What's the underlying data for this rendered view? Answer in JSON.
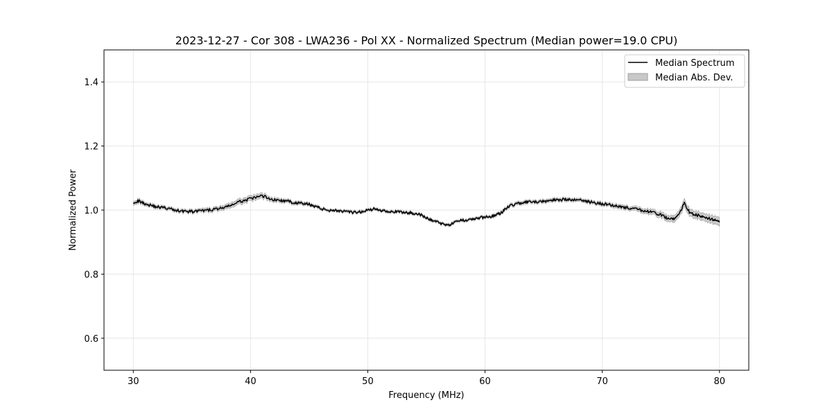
{
  "chart_data": {
    "type": "line",
    "title": "2023-12-27 - Cor 308 - LWA236 - Pol XX - Normalized Spectrum (Median power=19.0 CPU)",
    "xlabel": "Frequency (MHz)",
    "ylabel": "Normalized Power",
    "xlim": [
      27.5,
      82.5
    ],
    "ylim": [
      0.5,
      1.5
    ],
    "xticks": [
      30,
      40,
      50,
      60,
      70,
      80
    ],
    "yticks": [
      0.6,
      0.8,
      1.0,
      1.2,
      1.4
    ],
    "xtick_labels": [
      "30",
      "40",
      "50",
      "60",
      "70",
      "80"
    ],
    "ytick_labels": [
      "0.6",
      "0.8",
      "1.0",
      "1.2",
      "1.4"
    ],
    "grid": true,
    "legend_position": "top-right",
    "legend": [
      "Median Spectrum",
      "Median Abs. Dev."
    ],
    "colors": {
      "line": "#000000",
      "band": "#c8c8c8",
      "band_edge": "#a0a0a0",
      "grid": "#e6e6e6"
    },
    "series": [
      {
        "name": "Median Spectrum",
        "x": [
          30,
          30.5,
          31,
          31.5,
          32,
          32.5,
          33,
          33.5,
          34,
          34.5,
          35,
          35.5,
          36,
          36.5,
          37,
          37.5,
          38,
          38.5,
          39,
          39.5,
          40,
          40.5,
          41,
          41.5,
          42,
          42.5,
          43,
          43.5,
          44,
          44.5,
          45,
          45.5,
          46,
          46.5,
          47,
          47.5,
          48,
          48.5,
          49,
          49.5,
          50,
          50.5,
          51,
          51.5,
          52,
          52.5,
          53,
          53.5,
          54,
          54.5,
          55,
          55.5,
          56,
          56.5,
          57,
          57.5,
          58,
          58.5,
          59,
          59.5,
          60,
          60.5,
          61,
          61.5,
          62,
          62.5,
          63,
          63.5,
          64,
          64.5,
          65,
          65.5,
          66,
          66.5,
          67,
          67.5,
          68,
          68.5,
          69,
          69.5,
          70,
          70.5,
          71,
          71.5,
          72,
          72.5,
          73,
          73.5,
          74,
          74.5,
          75,
          75.5,
          76,
          76.5,
          77,
          77.5,
          78,
          78.5,
          79,
          79.5,
          80
        ],
        "values": [
          1.025,
          1.028,
          1.02,
          1.015,
          1.01,
          1.008,
          1.005,
          1.0,
          0.998,
          0.996,
          0.995,
          0.997,
          0.998,
          1.0,
          1.003,
          1.006,
          1.01,
          1.018,
          1.025,
          1.03,
          1.035,
          1.04,
          1.045,
          1.038,
          1.032,
          1.03,
          1.028,
          1.025,
          1.022,
          1.02,
          1.018,
          1.012,
          1.005,
          1.0,
          1.0,
          0.998,
          0.995,
          0.993,
          0.992,
          0.995,
          1.0,
          1.003,
          1.0,
          0.998,
          0.996,
          0.994,
          0.993,
          0.992,
          0.99,
          0.985,
          0.975,
          0.968,
          0.962,
          0.955,
          0.955,
          0.962,
          0.968,
          0.97,
          0.972,
          0.975,
          0.978,
          0.98,
          0.985,
          0.995,
          1.012,
          1.018,
          1.022,
          1.024,
          1.025,
          1.025,
          1.027,
          1.03,
          1.032,
          1.033,
          1.033,
          1.03,
          1.035,
          1.028,
          1.025,
          1.022,
          1.02,
          1.018,
          1.015,
          1.012,
          1.008,
          1.005,
          1.002,
          0.998,
          0.995,
          0.99,
          0.985,
          0.975,
          0.97,
          0.983,
          1.022,
          0.99,
          0.985,
          0.98,
          0.975,
          0.97,
          0.962
        ],
        "mad": [
          0.006,
          0.006,
          0.005,
          0.005,
          0.005,
          0.005,
          0.005,
          0.005,
          0.005,
          0.005,
          0.005,
          0.005,
          0.006,
          0.006,
          0.006,
          0.007,
          0.007,
          0.008,
          0.008,
          0.008,
          0.008,
          0.008,
          0.008,
          0.007,
          0.006,
          0.006,
          0.005,
          0.005,
          0.005,
          0.005,
          0.004,
          0.004,
          0.004,
          0.004,
          0.004,
          0.004,
          0.004,
          0.004,
          0.004,
          0.004,
          0.004,
          0.004,
          0.004,
          0.004,
          0.004,
          0.004,
          0.004,
          0.004,
          0.004,
          0.004,
          0.004,
          0.004,
          0.004,
          0.004,
          0.004,
          0.004,
          0.004,
          0.004,
          0.004,
          0.004,
          0.004,
          0.004,
          0.004,
          0.004,
          0.005,
          0.005,
          0.005,
          0.005,
          0.005,
          0.005,
          0.005,
          0.005,
          0.005,
          0.005,
          0.005,
          0.005,
          0.005,
          0.005,
          0.005,
          0.005,
          0.005,
          0.005,
          0.006,
          0.006,
          0.006,
          0.006,
          0.007,
          0.007,
          0.008,
          0.008,
          0.009,
          0.009,
          0.01,
          0.01,
          0.012,
          0.011,
          0.011,
          0.011,
          0.012,
          0.012,
          0.013
        ]
      }
    ]
  }
}
